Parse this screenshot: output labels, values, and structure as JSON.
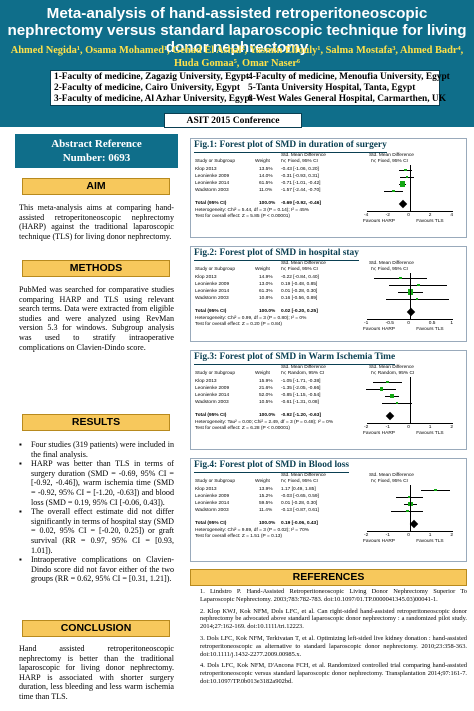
{
  "poster": {
    "title": "Meta-analysis of hand-assisted retroperitoneoscopic nephrectomy versus standard laparoscopic technique for living donor nephrectomy",
    "authors_line1": "Ahmed Negida¹, Osama Mohamed¹, Gehad El Ashal², Yasmin Elfouly¹, Salma Mostafa³, Ahmed Badr⁴,",
    "authors_line2": "Huda Gomaa⁵, Omar Naser⁶",
    "affiliations": [
      "1-Faculty of medicine, Zagazig University, Egypt",
      "2-Faculty of medicine, Cairo University, Egypt",
      "3-Faculty of medicine, Al Azhar University, Egypt",
      "4-Faculty of medicine, Menoufia University, Egypt",
      "5-Tanta University Hospital, Tanta, Egypt",
      "6-West Wales General Hospital, Carmarthen, UK"
    ],
    "conference": "ASIT 2015 Conference",
    "abstract_ref_line1": "Abstract Reference",
    "abstract_ref_line2": "Number: 0693"
  },
  "aim": {
    "heading": "AIM",
    "text": "This meta-analysis aims at comparing hand-assisted retroperitoneoscopic nephrectomy (HARP) against the traditional laparoscopic technique (TLS) for living donor nephrectomy."
  },
  "methods": {
    "heading": "METHODS",
    "text": "PubMed was searched for comparative studies comparing HARP and TLS using relevant search terms. Data were extracted from eligible studies and were analyzed using RevMan version 5.3 for windows. Subgroup analysis was used to stratify intraoperative complications on Clavien-Dindo score."
  },
  "results": {
    "heading": "RESULTS",
    "items": [
      "Four studies (319 patients) were included in the final analysis.",
      "HARP was better than TLS in terms of surgery duration (SMD = -0.69, 95% CI = [-0.92, -0.46]), warm ischemia time (SMD = -0.92, 95% CI = [-1.20, -0.63]) and blood loss (SMD = 0.19, 95% CI [-0.06, 0.43]).",
      "The overall effect estimate did not differ significantly in terms of hospital stay (SMD = 0.02, 95% CI = [-0.20, 0.25]) or graft survival (RR = 0.97, 95% CI = [0.93, 1.01]).",
      "Intraoperative complications on Clavien-Dindo score did not favor either of the two groups (RR = 0.62, 95% CI = [0.31, 1.21])."
    ]
  },
  "conclusion": {
    "heading": "CONCLUSION",
    "text": "Hand assisted retroperitoneoscopic nephrectomy is better than the traditional laparoscopic for living donor nephrectomy. HARP is associated with shorter surgery duration, less bleeding and less warm ischemia time than TLS."
  },
  "figures": [
    {
      "title": "Fig.1: Forest plot of SMD in duration of surgery",
      "col_study": "Study or Subgroup",
      "col_weight": "Weight",
      "col_smd": "Std. Mean Difference",
      "col_method": "IV, Fixed, 95% CI",
      "studies": [
        {
          "name": "Klop 2013",
          "weight": "13.5%",
          "ci": "-0.43 [-1.06, 0.20]",
          "smd": -0.43,
          "lo": -1.06,
          "hi": 0.2
        },
        {
          "name": "Leonienke 2009",
          "weight": "14.0%",
          "ci": "-0.31 [-0.93, 0.31]",
          "smd": -0.31,
          "lo": -0.93,
          "hi": 0.31
        },
        {
          "name": "Leonienke 2014",
          "weight": "61.5%",
          "ci": "-0.71 [-1.01, -0.42]",
          "smd": -0.71,
          "lo": -1.01,
          "hi": -0.42
        },
        {
          "name": "Wadstorm 2003",
          "weight": "11.0%",
          "ci": "-1.57 [-2.44, -0.70]",
          "smd": -1.57,
          "lo": -2.44,
          "hi": -0.7
        }
      ],
      "total_label": "Total (95% CI)",
      "total_weight": "100.0%",
      "total_ci": "-0.69 [-0.92, -0.46]",
      "total": -0.69,
      "heterogeneity": "Heterogeneity: Chi² = 5.44, df = 3 (P = 0.14); I² = 45%",
      "overall": "Test for overall effect: Z = 5.85 (P < 0.00001)",
      "ticks": [
        "-4",
        "-2",
        "0",
        "2",
        "4"
      ],
      "favours_left": "Favours HARP",
      "favours_right": "Favours TLS",
      "range": [
        -4,
        4
      ]
    },
    {
      "title": "Fig.2: Forest plot of SMD in hospital stay",
      "col_study": "Study or Subgroup",
      "col_weight": "Weight",
      "col_smd": "Std. Mean Difference",
      "col_method": "IV, Fixed, 95% CI",
      "studies": [
        {
          "name": "Klop 2013",
          "weight": "14.9%",
          "ci": "-0.22 [-0.84, 0.40]",
          "smd": -0.22,
          "lo": -0.84,
          "hi": 0.4
        },
        {
          "name": "Leonienke 2009",
          "weight": "13.0%",
          "ci": "0.19 [-0.48, 0.85]",
          "smd": 0.19,
          "lo": -0.48,
          "hi": 0.85
        },
        {
          "name": "Leonienke 2014",
          "weight": "61.3%",
          "ci": "0.01 [-0.28, 0.30]",
          "smd": 0.01,
          "lo": -0.28,
          "hi": 0.3
        },
        {
          "name": "Wadstorm 2003",
          "weight": "10.8%",
          "ci": "0.16 [-0.56, 0.89]",
          "smd": 0.16,
          "lo": -0.56,
          "hi": 0.89
        }
      ],
      "total_label": "Total (95% CI)",
      "total_weight": "100.0%",
      "total_ci": "0.02 [-0.20, 0.25]",
      "total": 0.02,
      "heterogeneity": "Heterogeneity: Chi² = 0.99, df = 3 (P = 0.80); I² = 0%",
      "overall": "Test for overall effect: Z = 0.20 (P = 0.84)",
      "ticks": [
        "-1",
        "-0.5",
        "0",
        "0.5",
        "1"
      ],
      "favours_left": "Favours HARP",
      "favours_right": "Favours TLS",
      "range": [
        -1,
        1
      ]
    },
    {
      "title": "Fig.3: Forest plot of SMD in Warm Ischemia Time",
      "col_study": "Study or Subgroup",
      "col_weight": "Weight",
      "col_smd": "Std. Mean Difference",
      "col_method": "IV, Random, 95% CI",
      "studies": [
        {
          "name": "Klop 2013",
          "weight": "15.9%",
          "ci": "-1.05 [-1.71, -0.38]",
          "smd": -1.05,
          "lo": -1.71,
          "hi": -0.38
        },
        {
          "name": "Leonienke 2009",
          "weight": "21.6%",
          "ci": "-1.35 [-2.05, -0.66]",
          "smd": -1.35,
          "lo": -2.05,
          "hi": -0.66
        },
        {
          "name": "Leonienke 2014",
          "weight": "52.0%",
          "ci": "-0.85 [-1.15, -0.54]",
          "smd": -0.85,
          "lo": -1.15,
          "hi": -0.54
        },
        {
          "name": "Wadstorm 2003",
          "weight": "10.5%",
          "ci": "-0.61 [-1.31, 0.08]",
          "smd": -0.61,
          "lo": -1.31,
          "hi": 0.08
        }
      ],
      "total_label": "Total (95% CI)",
      "total_weight": "100.0%",
      "total_ci": "-0.92 [-1.20, -0.63]",
      "total": -0.92,
      "heterogeneity": "Heterogeneity: Tau² = 0.00; Chi² = 2.49, df = 3 (P = 0.48); I² = 0%",
      "overall": "Test for overall effect: Z = 6.28 (P < 0.00001)",
      "ticks": [
        "-2",
        "-1",
        "0",
        "1",
        "2"
      ],
      "favours_left": "Favours HARP",
      "favours_right": "Favours TLS",
      "range": [
        -2,
        2
      ]
    },
    {
      "title": "Fig.4: Forest plot of SMD in Blood loss",
      "col_study": "Study or Subgroup",
      "col_weight": "Weight",
      "col_smd": "Std. Mean Difference",
      "col_method": "IV, Fixed, 95% CI",
      "studies": [
        {
          "name": "Klop 2013",
          "weight": "13.9%",
          "ci": "1.17 [0.49, 1.85]",
          "smd": 1.17,
          "lo": 0.49,
          "hi": 1.85
        },
        {
          "name": "Leonienke 2009",
          "weight": "15.2%",
          "ci": "-0.03 [-0.65, 0.59]",
          "smd": -0.03,
          "lo": -0.65,
          "hi": 0.59
        },
        {
          "name": "Leonienke 2014",
          "weight": "59.5%",
          "ci": "0.01 [-0.28, 0.30]",
          "smd": 0.01,
          "lo": -0.28,
          "hi": 0.3
        },
        {
          "name": "Wadstorm 2003",
          "weight": "11.4%",
          "ci": "-0.13 [-0.87, 0.61]",
          "smd": -0.13,
          "lo": -0.87,
          "hi": 0.61
        }
      ],
      "total_label": "Total (95% CI)",
      "total_weight": "100.0%",
      "total_ci": "0.19 [-0.06, 0.43]",
      "total": 0.19,
      "heterogeneity": "Heterogeneity: Chi² = 9.89, df = 3 (P = 0.02); I² = 70%",
      "overall": "Test for overall effect: Z = 1.51 (P = 0.13)",
      "ticks": [
        "-2",
        "-1",
        "0",
        "1",
        "2"
      ],
      "favours_left": "Favours HARP",
      "favours_right": "Favours TLS",
      "range": [
        -2,
        2
      ]
    }
  ],
  "references": {
    "heading": "REFERENCES",
    "items": [
      "1.  Lindstro P. Hand-Assisted Retroperitoneoscopic Living Donor Nephrectomy Superior To Laparoscopic Nephrectomy. 2003;783:782-783. doi:10.1097/01.TP.0000041345.03)00041-1.",
      "2.  Klop KWJ, Kok NFM, Dols LFC, et al. Can right-sided hand-assisted retroperitoneoscopic donor nephrectomy be advocated above standard laparoscopic donor nephrectomy : a randomized pilot study. 2014;27:162-169. doi:10.1111/tri.12223.",
      "3.  Dols LFC, Kok NFM, Terkivatan T, et al. Optimizing left-sided live kidney donation : hand-assisted retroperitoneoscopic as alternative to standard laparoscopic donor nephrectomy. 2010;23:358-363. doi:10.1111/j.1432-2277.2009.00985.x.",
      "4.  Dols LFC, Kok NFM, D'Ancona FCH, et al. Randomized controlled trial comparing hand-assisted retroperitoneoscopic versus standard laparoscopic donor nephrectomy. Transplantation 2014;97:161-7. doi:10.1097/TP.0b013e3182a902bd."
    ]
  }
}
